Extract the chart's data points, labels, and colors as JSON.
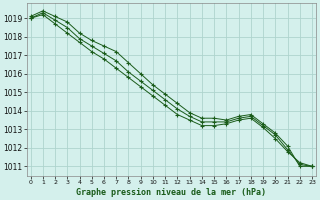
{
  "title": "Graphe pression niveau de la mer (hPa)",
  "background_color": "#d4f0ec",
  "grid_color": "#aed4ce",
  "line_color": "#1a5c1a",
  "x_ticks": [
    0,
    1,
    2,
    3,
    4,
    5,
    6,
    7,
    8,
    9,
    10,
    11,
    12,
    13,
    14,
    15,
    16,
    17,
    18,
    19,
    20,
    21,
    22,
    23
  ],
  "ylim": [
    1010.5,
    1019.8
  ],
  "y_ticks": [
    1011,
    1012,
    1013,
    1014,
    1015,
    1016,
    1017,
    1018,
    1019
  ],
  "series": [
    [
      1019.1,
      1019.4,
      1019.1,
      1018.8,
      1018.2,
      1017.8,
      1017.5,
      1017.2,
      1016.6,
      1016.0,
      1015.4,
      1014.9,
      1014.4,
      1013.9,
      1013.6,
      1013.6,
      1013.5,
      1013.7,
      1013.8,
      1013.3,
      1012.8,
      1012.1,
      1011.0,
      1011.0
    ],
    [
      1019.0,
      1019.3,
      1018.9,
      1018.5,
      1017.9,
      1017.5,
      1017.1,
      1016.7,
      1016.1,
      1015.6,
      1015.1,
      1014.6,
      1014.1,
      1013.7,
      1013.4,
      1013.4,
      1013.4,
      1013.6,
      1013.7,
      1013.2,
      1012.7,
      1011.9,
      1011.1,
      1011.0
    ],
    [
      1019.0,
      1019.2,
      1018.7,
      1018.2,
      1017.7,
      1017.2,
      1016.8,
      1016.3,
      1015.8,
      1015.3,
      1014.8,
      1014.3,
      1013.8,
      1013.5,
      1013.2,
      1013.2,
      1013.3,
      1013.5,
      1013.6,
      1013.1,
      1012.5,
      1011.8,
      1011.2,
      1011.0
    ]
  ],
  "marker_indices": [
    0,
    1,
    2,
    3,
    4,
    5,
    6,
    7,
    8,
    9,
    10,
    11,
    12,
    13,
    14,
    15,
    16,
    17,
    18,
    19,
    20,
    21,
    22,
    23
  ],
  "marker_size": 2.5,
  "title_fontsize": 6,
  "ytick_fontsize": 5.5,
  "xtick_fontsize": 4.5
}
